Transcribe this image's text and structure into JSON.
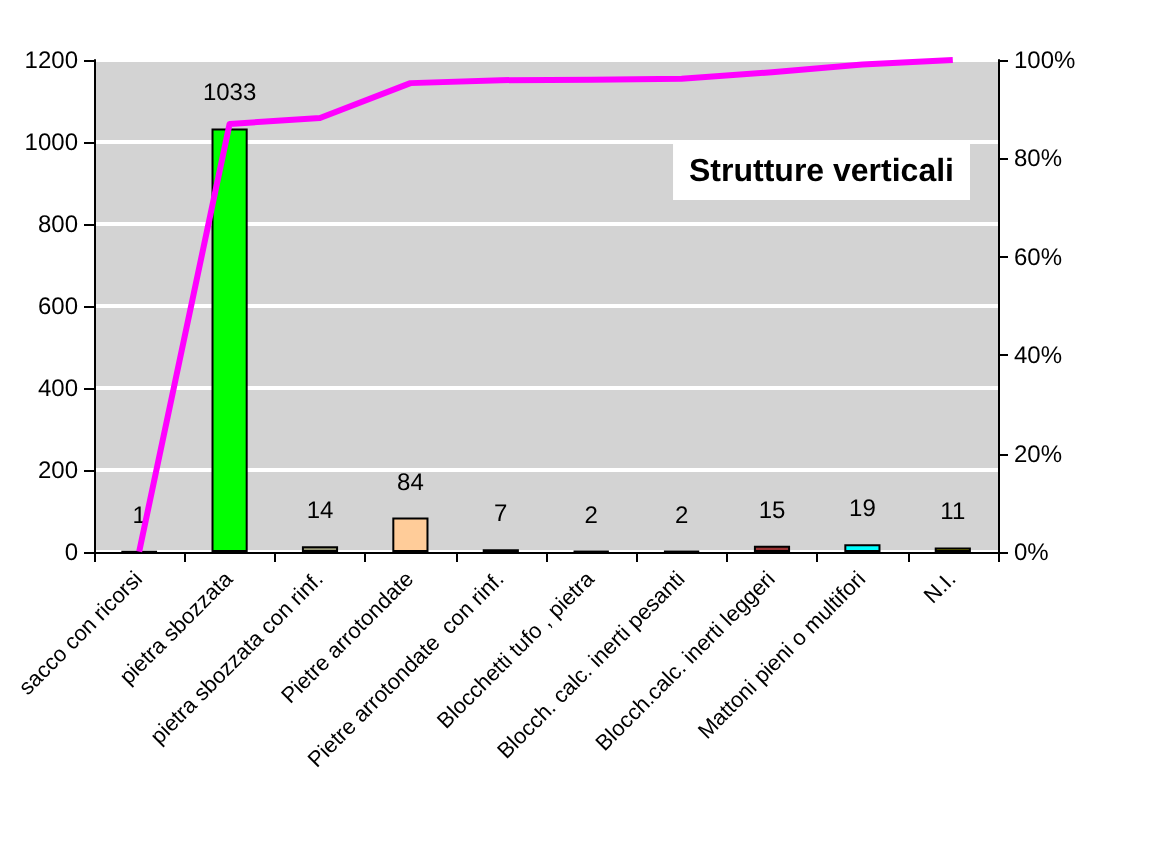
{
  "chart_data": {
    "type": "bar",
    "title": "Strutture verticali",
    "categories": [
      "sacco con ricorsi",
      "pietra sbozzata",
      "pietra sbozzata con rinf.",
      "Pietre arrotondate",
      "Pietre arrotondate  con rinf.",
      "Blocchetti tufo , pietra",
      "Blocch. calc. inerti pesanti",
      "Blocch.calc. inerti leggeri",
      "Mattoni pieni o multifori",
      "N.I."
    ],
    "series": [
      {
        "values": [
          1,
          1033,
          14,
          84,
          7,
          2,
          2,
          15,
          19,
          11
        ],
        "value_labels": [
          "1",
          "1033",
          "14",
          "84",
          "7",
          "2",
          "2",
          "15",
          "19",
          "11"
        ],
        "colors": [
          "#996666",
          "#00ff00",
          "#999977",
          "#ffcc99",
          "#333333",
          "#666666",
          "#666666",
          "#993333",
          "#00ffff",
          "#999900"
        ]
      },
      {
        "type": "line",
        "axis": "y2",
        "color": "#ff00ff",
        "values": [
          0.1,
          87.0,
          88.2,
          95.3,
          95.9,
          96.0,
          96.2,
          97.5,
          99.1,
          100
        ]
      }
    ],
    "ylim": [
      0,
      1200
    ],
    "yticks": [
      0,
      200,
      400,
      600,
      800,
      1000,
      1200
    ],
    "y2lim": [
      0,
      100
    ],
    "y2ticks": [
      {
        "value": 0,
        "label": "0%"
      },
      {
        "value": 20,
        "label": "20%"
      },
      {
        "value": 40,
        "label": "40%"
      },
      {
        "value": 60,
        "label": "60%"
      },
      {
        "value": 80,
        "label": "80%"
      },
      {
        "value": 100,
        "label": "100%"
      }
    ],
    "grid": "y",
    "marker": "none",
    "line_style": "solid"
  }
}
